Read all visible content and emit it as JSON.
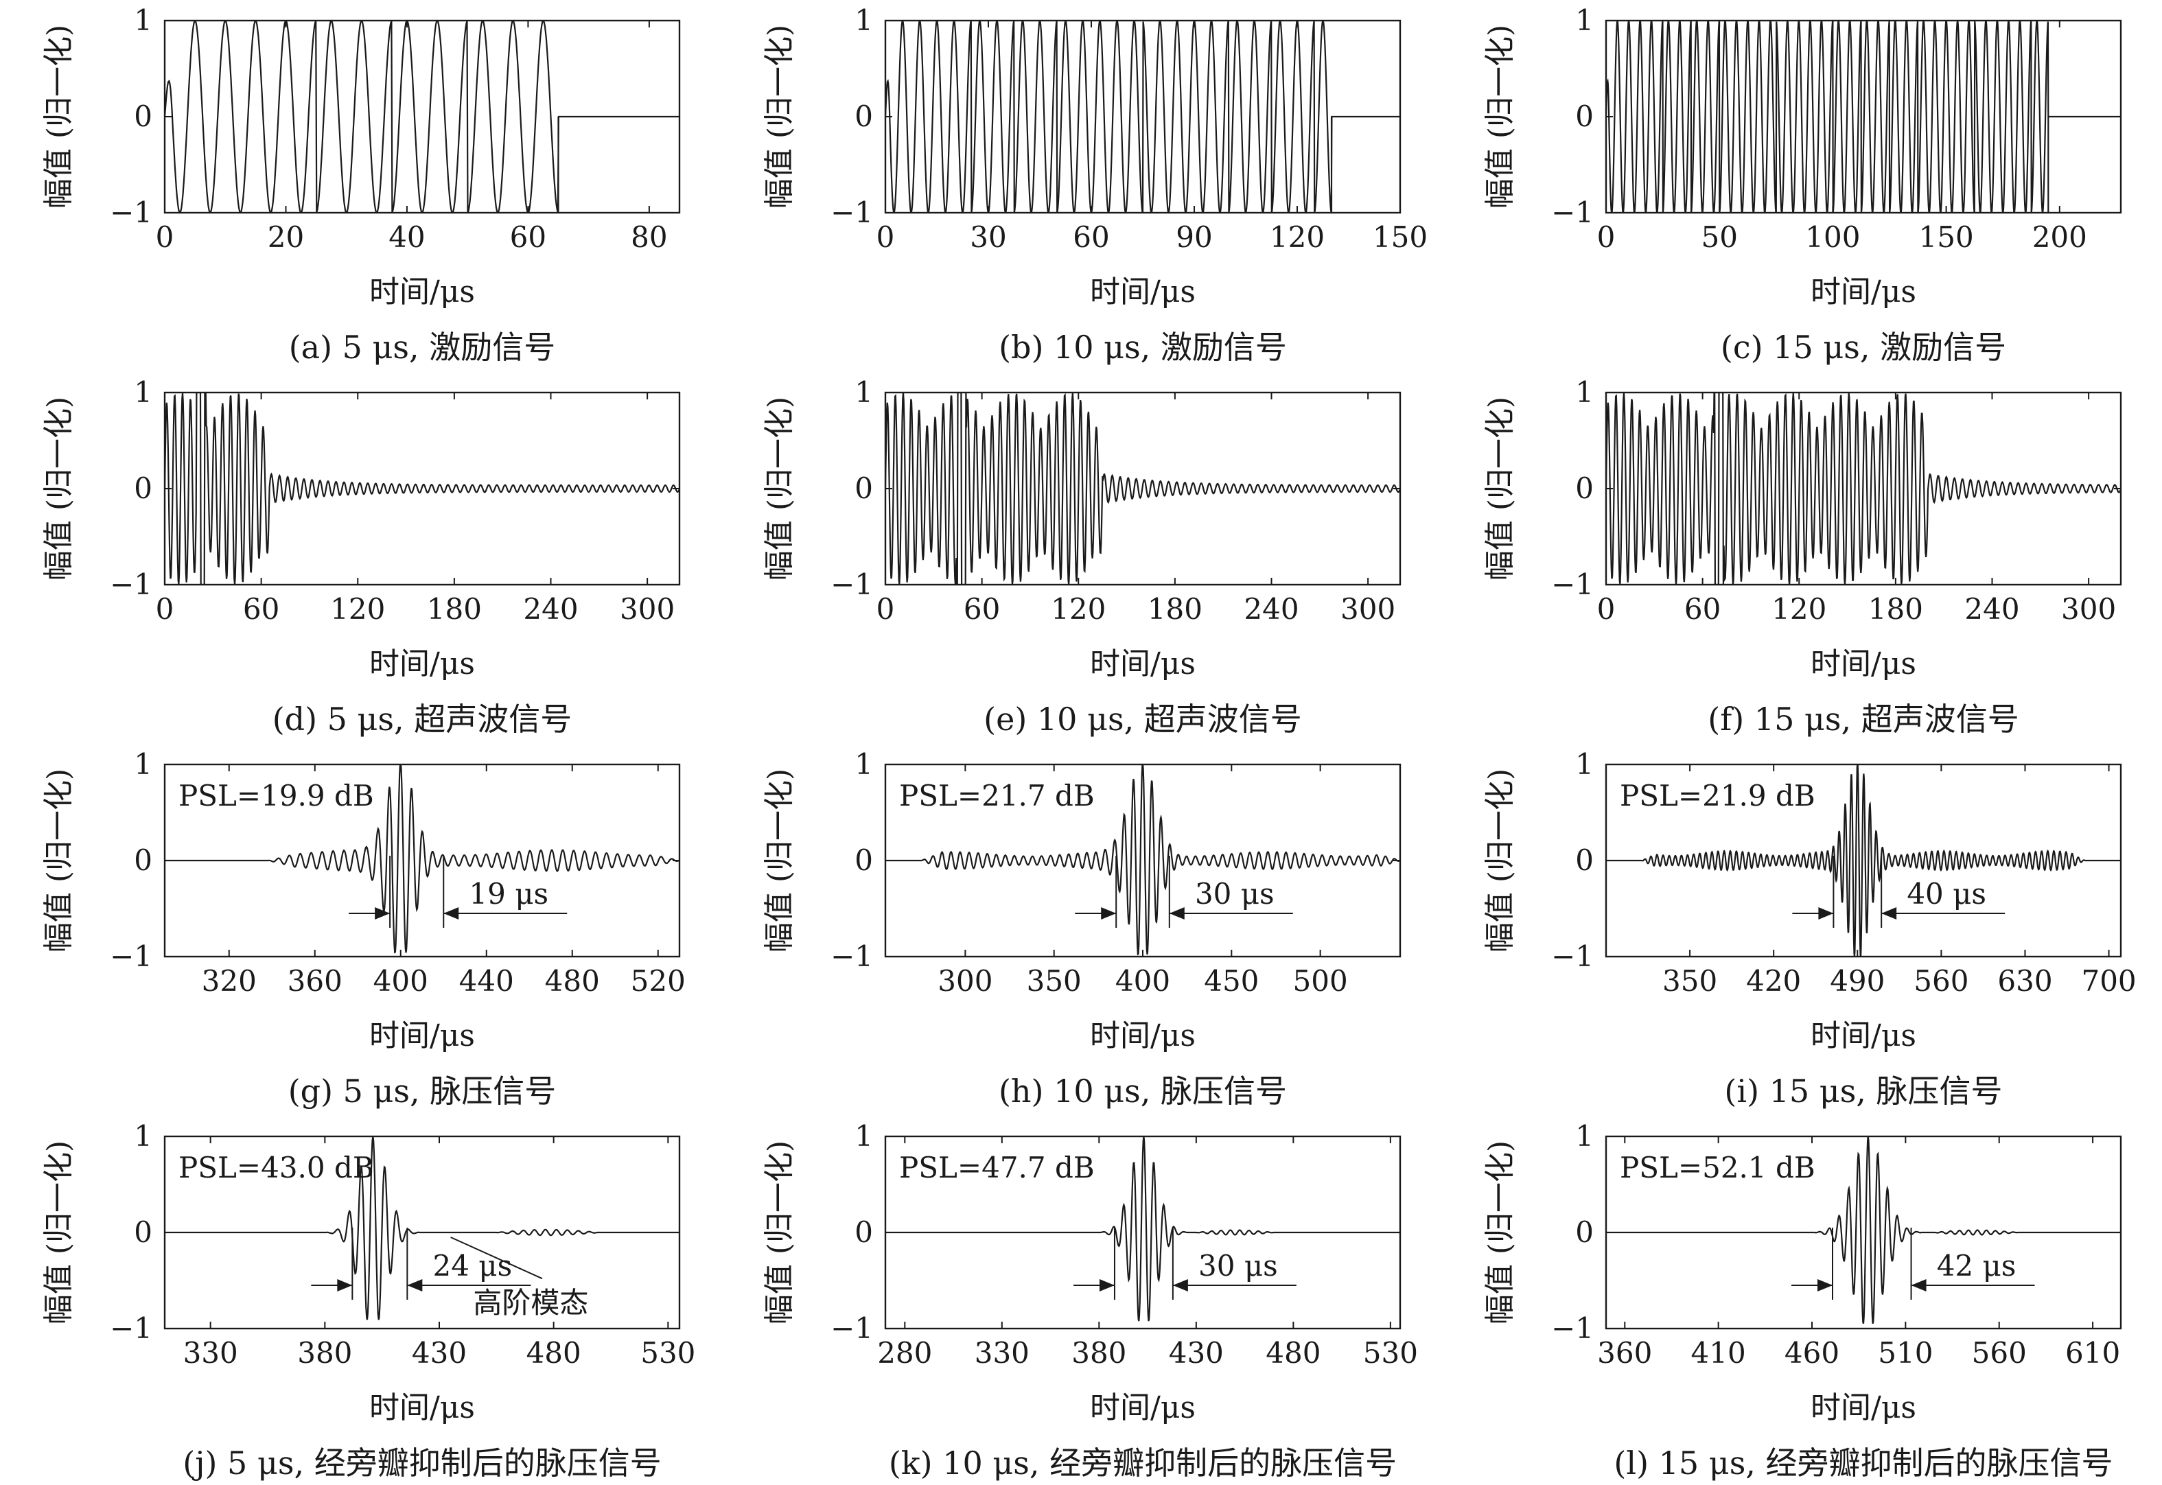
{
  "chart_data": [
    {
      "id": "a",
      "type": "line",
      "caption": "(a) 5 μs, 激励信号",
      "xlabel": "时间/μs",
      "ylabel": "幅值 (归一化)",
      "xlim": [
        0,
        85
      ],
      "ylim": [
        -1,
        1
      ],
      "x_ticks": [
        0,
        20,
        40,
        60,
        80
      ],
      "y_ticks": [
        -1,
        0,
        1
      ],
      "series": [
        {
          "kind": "excitation",
          "period_us": 5,
          "end_us": 65
        }
      ]
    },
    {
      "id": "b",
      "type": "line",
      "caption": "(b) 10 μs, 激励信号",
      "xlabel": "时间/μs",
      "ylabel": "幅值 (归一化)",
      "xlim": [
        0,
        150
      ],
      "ylim": [
        -1,
        1
      ],
      "x_ticks": [
        0,
        30,
        60,
        90,
        120,
        150
      ],
      "y_ticks": [
        -1,
        0,
        1
      ],
      "series": [
        {
          "kind": "excitation",
          "period_us": 5,
          "end_us": 130
        }
      ]
    },
    {
      "id": "c",
      "type": "line",
      "caption": "(c) 15 μs, 激励信号",
      "xlabel": "时间/μs",
      "ylabel": "幅值 (归一化)",
      "xlim": [
        0,
        227
      ],
      "ylim": [
        -1,
        1
      ],
      "x_ticks": [
        0,
        50,
        100,
        150,
        200
      ],
      "y_ticks": [
        -1,
        0,
        1
      ],
      "series": [
        {
          "kind": "excitation",
          "period_us": 5,
          "end_us": 195
        }
      ]
    },
    {
      "id": "d",
      "type": "line",
      "caption": "(d) 5 μs, 超声波信号",
      "xlabel": "时间/μs",
      "ylabel": "幅值 (归一化)",
      "xlim": [
        0,
        320
      ],
      "ylim": [
        -1,
        1
      ],
      "x_ticks": [
        0,
        60,
        120,
        180,
        240,
        300
      ],
      "y_ticks": [
        -1,
        0,
        1
      ],
      "series": [
        {
          "kind": "ultrasonic",
          "burst_end_us": 65,
          "peak_abs": 1
        }
      ]
    },
    {
      "id": "e",
      "type": "line",
      "caption": "(e) 10 μs, 超声波信号",
      "xlabel": "时间/μs",
      "ylabel": "幅值 (归一化)",
      "xlim": [
        0,
        320
      ],
      "ylim": [
        -1,
        1
      ],
      "x_ticks": [
        0,
        60,
        120,
        180,
        240,
        300
      ],
      "y_ticks": [
        -1,
        0,
        1
      ],
      "series": [
        {
          "kind": "ultrasonic",
          "burst_end_us": 135,
          "peak_abs": 1
        }
      ]
    },
    {
      "id": "f",
      "type": "line",
      "caption": "(f) 15 μs, 超声波信号",
      "xlabel": "时间/μs",
      "ylabel": "幅值 (归一化)",
      "xlim": [
        0,
        320
      ],
      "ylim": [
        -1,
        1
      ],
      "x_ticks": [
        0,
        60,
        120,
        180,
        240,
        300
      ],
      "y_ticks": [
        -1,
        0,
        1
      ],
      "series": [
        {
          "kind": "ultrasonic",
          "burst_end_us": 200,
          "peak_abs": 1
        }
      ]
    },
    {
      "id": "g",
      "type": "line",
      "caption": "(g) 5 μs, 脉压信号",
      "xlabel": "时间/μs",
      "ylabel": "幅值 (归一化)",
      "xlim": [
        290,
        530
      ],
      "ylim": [
        -1,
        1
      ],
      "x_ticks": [
        320,
        360,
        400,
        440,
        480,
        520
      ],
      "y_ticks": [
        -1,
        0,
        1
      ],
      "series": [
        {
          "kind": "compressed",
          "center_us": 400,
          "main_half_width_us": 20,
          "sidelobe_start_us": 338,
          "sidelobe_end_us": 530,
          "sidelobe_level": 0.11,
          "peak_level": 1
        }
      ],
      "psl_label": "PSL=19.9 dB",
      "width_label": "19 μs",
      "width_markers_us": [
        395,
        420
      ]
    },
    {
      "id": "h",
      "type": "line",
      "caption": "(h) 10 μs, 脉压信号",
      "xlabel": "时间/μs",
      "ylabel": "幅值 (归一化)",
      "xlim": [
        255,
        545
      ],
      "ylim": [
        -1,
        1
      ],
      "x_ticks": [
        300,
        350,
        400,
        450,
        500
      ],
      "y_ticks": [
        -1,
        0,
        1
      ],
      "series": [
        {
          "kind": "compressed",
          "center_us": 400,
          "main_half_width_us": 25,
          "sidelobe_start_us": 275,
          "sidelobe_end_us": 545,
          "sidelobe_level": 0.09,
          "peak_level": 1
        }
      ],
      "psl_label": "PSL=21.7 dB",
      "width_label": "30 μs",
      "width_markers_us": [
        385,
        415
      ]
    },
    {
      "id": "i",
      "type": "line",
      "caption": "(i) 15 μs, 脉压信号",
      "xlabel": "时间/μs",
      "ylabel": "幅值 (归一化)",
      "xlim": [
        280,
        710
      ],
      "ylim": [
        -1,
        1
      ],
      "x_ticks": [
        350,
        420,
        490,
        560,
        630,
        700
      ],
      "y_ticks": [
        -1,
        0,
        1
      ],
      "series": [
        {
          "kind": "compressed",
          "center_us": 490,
          "main_half_width_us": 30,
          "sidelobe_start_us": 310,
          "sidelobe_end_us": 680,
          "sidelobe_level": 0.1,
          "peak_level": 1
        }
      ],
      "psl_label": "PSL=21.9 dB",
      "width_label": "40 μs",
      "width_markers_us": [
        470,
        510
      ]
    },
    {
      "id": "j",
      "type": "line",
      "caption": "(j) 5 μs, 经旁瓣抑制后的脉压信号",
      "xlabel": "时间/μs",
      "ylabel": "幅值 (归一化)",
      "xlim": [
        310,
        535
      ],
      "ylim": [
        -1,
        1
      ],
      "x_ticks": [
        330,
        380,
        430,
        480,
        530
      ],
      "y_ticks": [
        -1,
        0,
        1
      ],
      "series": [
        {
          "kind": "suppressed",
          "center_us": 401,
          "main_half_width_us": 20,
          "tail_start_us": 455,
          "tail_end_us": 500,
          "tail_level": 0.03,
          "peak_level": 1
        }
      ],
      "psl_label": "PSL=43.0 dB",
      "width_label": "24 μs",
      "width_markers_us": [
        392,
        416
      ],
      "note_label": "高阶模态"
    },
    {
      "id": "k",
      "type": "line",
      "caption": "(k) 10 μs, 经旁瓣抑制后的脉压信号",
      "xlabel": "时间/μs",
      "ylabel": "幅值 (归一化)",
      "xlim": [
        270,
        535
      ],
      "ylim": [
        -1,
        1
      ],
      "x_ticks": [
        280,
        330,
        380,
        430,
        480,
        530
      ],
      "y_ticks": [
        -1,
        0,
        1
      ],
      "series": [
        {
          "kind": "suppressed",
          "center_us": 403,
          "main_half_width_us": 22,
          "tail_start_us": 430,
          "tail_end_us": 470,
          "tail_level": 0.025,
          "peak_level": 1
        }
      ],
      "psl_label": "PSL=47.7 dB",
      "width_label": "30 μs",
      "width_markers_us": [
        388,
        418
      ]
    },
    {
      "id": "l",
      "type": "line",
      "caption": "(l) 15 μs, 经旁瓣抑制后的脉压信号",
      "xlabel": "时间/μs",
      "ylabel": "幅值 (归一化)",
      "xlim": [
        350,
        625
      ],
      "ylim": [
        -1,
        1
      ],
      "x_ticks": [
        360,
        410,
        460,
        510,
        560,
        610
      ],
      "y_ticks": [
        -1,
        0,
        1
      ],
      "series": [
        {
          "kind": "suppressed",
          "center_us": 490,
          "main_half_width_us": 28,
          "tail_start_us": 525,
          "tail_end_us": 570,
          "tail_level": 0.025,
          "peak_level": 1
        }
      ],
      "psl_label": "PSL=52.1 dB",
      "width_label": "42 μs",
      "width_markers_us": [
        471,
        513
      ]
    }
  ]
}
